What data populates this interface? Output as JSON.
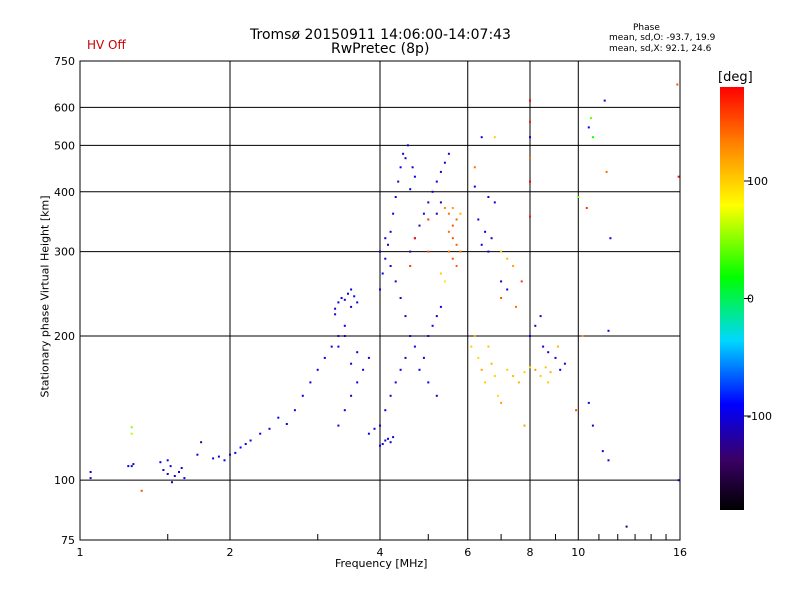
{
  "header": {
    "title_line1": "Tromsø 20150911 14:06:00-14:07:43",
    "title_line2": "RwPretec (8p)",
    "status": "HV Off",
    "phase_header": "Phase",
    "phase_o": "mean, sd,O: -93.7, 19.9",
    "phase_x": "mean, sd,X:  92.1, 24.6"
  },
  "colorbar": {
    "unit": "[deg]",
    "ticks": [
      "100",
      "0",
      "-100"
    ],
    "range": [
      -180,
      180
    ]
  },
  "chart_data": {
    "type": "scatter",
    "title": "Tromsø 20150911 14:06:00-14:07:43",
    "subtitle": "RwPretec (8p)",
    "xlabel": "Frequency [MHz]",
    "ylabel": "Stationary phase Virtual Height [km]",
    "xscale": "log",
    "yscale": "log",
    "xlim": [
      1,
      16
    ],
    "ylim": [
      75,
      750
    ],
    "xticks": [
      1,
      2,
      4,
      6,
      8,
      10,
      16
    ],
    "xtick_labels": [
      "1",
      "2",
      "4",
      "6",
      "8",
      "10",
      "16"
    ],
    "yticks": [
      75,
      100,
      200,
      300,
      400,
      500,
      600,
      750
    ],
    "ytick_labels": [
      "75",
      "100",
      "200",
      "300",
      "400",
      "500",
      "600",
      "750"
    ],
    "grid": true,
    "color_by": "phase",
    "colormap": "rainbow",
    "series": [
      {
        "points": [
          [
            1.05,
            104,
            -100
          ],
          [
            1.05,
            101,
            -110
          ],
          [
            1.25,
            107,
            -95
          ],
          [
            1.27,
            107,
            -100
          ],
          [
            1.28,
            108,
            -105
          ],
          [
            1.27,
            129,
            50
          ],
          [
            1.27,
            125,
            60
          ],
          [
            1.33,
            95,
            150
          ],
          [
            1.45,
            109,
            -100
          ],
          [
            1.47,
            105,
            -105
          ],
          [
            1.5,
            103,
            -110
          ],
          [
            1.52,
            107,
            -95
          ],
          [
            1.55,
            102,
            -105
          ],
          [
            1.58,
            104,
            -100
          ],
          [
            1.6,
            106,
            -110
          ],
          [
            1.62,
            101,
            -95
          ],
          [
            1.5,
            110,
            -100
          ],
          [
            1.53,
            99,
            -110
          ],
          [
            1.75,
            120,
            -120
          ],
          [
            1.72,
            113,
            -100
          ],
          [
            1.85,
            111,
            -100
          ],
          [
            1.9,
            112,
            -105
          ],
          [
            1.95,
            110,
            -95
          ],
          [
            2.0,
            113,
            -110
          ],
          [
            2.05,
            114,
            -100
          ],
          [
            2.1,
            117,
            -90
          ],
          [
            2.15,
            119,
            -100
          ],
          [
            2.2,
            121,
            -105
          ],
          [
            2.3,
            125,
            -95
          ],
          [
            2.4,
            128,
            -100
          ],
          [
            2.5,
            135,
            -90
          ],
          [
            2.6,
            131,
            -110
          ],
          [
            2.7,
            140,
            -100
          ],
          [
            2.8,
            150,
            -95
          ],
          [
            2.9,
            160,
            -100
          ],
          [
            3.0,
            170,
            -105
          ],
          [
            3.1,
            180,
            -90
          ],
          [
            3.2,
            190,
            -100
          ],
          [
            3.3,
            200,
            -110
          ],
          [
            3.4,
            210,
            -95
          ],
          [
            3.25,
            228,
            -100
          ],
          [
            3.3,
            235,
            -105
          ],
          [
            3.35,
            240,
            -95
          ],
          [
            3.4,
            238,
            -110
          ],
          [
            3.45,
            245,
            -100
          ],
          [
            3.5,
            230,
            -105
          ],
          [
            3.55,
            242,
            -90
          ],
          [
            3.6,
            235,
            -100
          ],
          [
            3.25,
            222,
            -110
          ],
          [
            3.5,
            250,
            -100
          ],
          [
            3.3,
            130,
            -100
          ],
          [
            3.4,
            140,
            -95
          ],
          [
            3.5,
            150,
            -110
          ],
          [
            3.6,
            160,
            -100
          ],
          [
            3.7,
            170,
            -105
          ],
          [
            3.8,
            180,
            -95
          ],
          [
            3.3,
            190,
            -100
          ],
          [
            3.4,
            200,
            -110
          ],
          [
            3.5,
            175,
            -100
          ],
          [
            3.6,
            185,
            -90
          ],
          [
            3.8,
            125,
            -100
          ],
          [
            3.9,
            128,
            -95
          ],
          [
            4.0,
            130,
            -110
          ],
          [
            4.1,
            140,
            -100
          ],
          [
            4.2,
            150,
            -105
          ],
          [
            4.3,
            160,
            -95
          ],
          [
            4.4,
            170,
            -100
          ],
          [
            4.5,
            180,
            -110
          ],
          [
            4.0,
            118,
            -100
          ],
          [
            4.05,
            119,
            -95
          ],
          [
            4.1,
            121,
            -110
          ],
          [
            4.15,
            122,
            -100
          ],
          [
            4.2,
            120,
            -105
          ],
          [
            4.25,
            123,
            -95
          ],
          [
            4.0,
            250,
            -100
          ],
          [
            4.05,
            270,
            -95
          ],
          [
            4.1,
            290,
            -110
          ],
          [
            4.15,
            310,
            -100
          ],
          [
            4.2,
            330,
            -105
          ],
          [
            4.25,
            360,
            -95
          ],
          [
            4.3,
            390,
            -100
          ],
          [
            4.35,
            420,
            -110
          ],
          [
            4.4,
            450,
            -100
          ],
          [
            4.45,
            480,
            -95
          ],
          [
            4.0,
            300,
            -100
          ],
          [
            4.1,
            320,
            -105
          ],
          [
            4.2,
            280,
            -95
          ],
          [
            4.3,
            260,
            -100
          ],
          [
            4.4,
            240,
            -110
          ],
          [
            4.5,
            220,
            -100
          ],
          [
            4.6,
            200,
            -105
          ],
          [
            4.7,
            190,
            -95
          ],
          [
            4.6,
            300,
            -100
          ],
          [
            4.7,
            320,
            -95
          ],
          [
            4.8,
            340,
            -110
          ],
          [
            4.9,
            360,
            -100
          ],
          [
            5.0,
            380,
            -105
          ],
          [
            5.1,
            400,
            -95
          ],
          [
            5.2,
            420,
            -100
          ],
          [
            5.3,
            440,
            -110
          ],
          [
            5.4,
            460,
            -100
          ],
          [
            5.5,
            480,
            -95
          ],
          [
            4.6,
            405,
            -100
          ],
          [
            4.7,
            430,
            -95
          ],
          [
            4.5,
            470,
            -110
          ],
          [
            4.55,
            500,
            -100
          ],
          [
            4.65,
            450,
            -105
          ],
          [
            5.0,
            200,
            -100
          ],
          [
            5.1,
            210,
            -95
          ],
          [
            5.2,
            220,
            -110
          ],
          [
            5.3,
            230,
            -100
          ],
          [
            4.9,
            180,
            -105
          ],
          [
            4.8,
            170,
            -95
          ],
          [
            5.0,
            160,
            -100
          ],
          [
            5.2,
            150,
            -110
          ],
          [
            5.5,
            330,
            140
          ],
          [
            5.6,
            320,
            150
          ],
          [
            5.7,
            310,
            145
          ],
          [
            5.8,
            300,
            140
          ],
          [
            5.6,
            340,
            150
          ],
          [
            5.7,
            350,
            145
          ],
          [
            5.5,
            300,
            140
          ],
          [
            5.6,
            290,
            150
          ],
          [
            5.7,
            280,
            145
          ],
          [
            5.5,
            360,
            140
          ],
          [
            5.4,
            370,
            130
          ],
          [
            5.6,
            370,
            120
          ],
          [
            5.8,
            360,
            110
          ],
          [
            5.3,
            270,
            100
          ],
          [
            5.4,
            260,
            90
          ],
          [
            5.0,
            350,
            160
          ],
          [
            5.0,
            300,
            150
          ],
          [
            4.7,
            320,
            170
          ],
          [
            4.6,
            280,
            160
          ],
          [
            5.2,
            360,
            -100
          ],
          [
            5.3,
            380,
            -110
          ],
          [
            6.1,
            190,
            100
          ],
          [
            6.2,
            200,
            110
          ],
          [
            6.3,
            180,
            95
          ],
          [
            6.4,
            170,
            120
          ],
          [
            6.5,
            160,
            100
          ],
          [
            6.6,
            190,
            105
          ],
          [
            6.7,
            175,
            110
          ],
          [
            6.8,
            165,
            100
          ],
          [
            6.9,
            150,
            95
          ],
          [
            7.0,
            145,
            120
          ],
          [
            7.2,
            170,
            100
          ],
          [
            7.4,
            165,
            105
          ],
          [
            7.6,
            160,
            110
          ],
          [
            7.8,
            168,
            100
          ],
          [
            8.0,
            172,
            95
          ],
          [
            8.2,
            170,
            120
          ],
          [
            8.4,
            165,
            100
          ],
          [
            8.6,
            172,
            105
          ],
          [
            8.8,
            168,
            110
          ],
          [
            8.0,
            200,
            -100
          ],
          [
            8.2,
            210,
            -110
          ],
          [
            8.4,
            220,
            -95
          ],
          [
            8.5,
            190,
            -100
          ],
          [
            8.7,
            185,
            -105
          ],
          [
            6.3,
            350,
            -100
          ],
          [
            6.5,
            330,
            -95
          ],
          [
            6.7,
            320,
            -110
          ],
          [
            6.4,
            310,
            -100
          ],
          [
            6.6,
            300,
            -105
          ],
          [
            6.2,
            410,
            -100
          ],
          [
            6.6,
            390,
            -105
          ],
          [
            6.8,
            380,
            -100
          ],
          [
            7.0,
            300,
            100
          ],
          [
            7.2,
            290,
            110
          ],
          [
            7.4,
            280,
            120
          ],
          [
            7.0,
            260,
            -100
          ],
          [
            7.2,
            250,
            -110
          ],
          [
            8.0,
            520,
            -100
          ],
          [
            8.0,
            470,
            140
          ],
          [
            8.0,
            420,
            180
          ],
          [
            8.0,
            620,
            180
          ],
          [
            8.0,
            560,
            170
          ],
          [
            8.0,
            355,
            170
          ],
          [
            6.4,
            520,
            -100
          ],
          [
            6.2,
            450,
            140
          ],
          [
            6.8,
            520,
            100
          ],
          [
            7.0,
            240,
            150
          ],
          [
            7.5,
            230,
            140
          ],
          [
            7.7,
            260,
            160
          ],
          [
            7.8,
            130,
            120
          ],
          [
            8.7,
            160,
            100
          ],
          [
            9.0,
            180,
            -100
          ],
          [
            9.2,
            170,
            -105
          ],
          [
            9.4,
            175,
            -100
          ],
          [
            9.1,
            190,
            110
          ],
          [
            10.6,
            570,
            40
          ],
          [
            10.7,
            520,
            20
          ],
          [
            10.5,
            545,
            -100
          ],
          [
            11.3,
            620,
            -100
          ],
          [
            11.4,
            440,
            140
          ],
          [
            11.6,
            320,
            -100
          ],
          [
            11.5,
            205,
            -100
          ],
          [
            10.5,
            145,
            -100
          ],
          [
            10.7,
            130,
            -100
          ],
          [
            10.2,
            200,
            120
          ],
          [
            10.4,
            370,
            160
          ],
          [
            12.5,
            80,
            -150
          ],
          [
            15.8,
            670,
            150
          ],
          [
            15.9,
            430,
            170
          ],
          [
            15.9,
            100,
            -100
          ],
          [
            11.2,
            115,
            -100
          ],
          [
            11.5,
            110,
            -100
          ],
          [
            10.0,
            390,
            40
          ],
          [
            9.9,
            140,
            150
          ]
        ]
      }
    ]
  }
}
